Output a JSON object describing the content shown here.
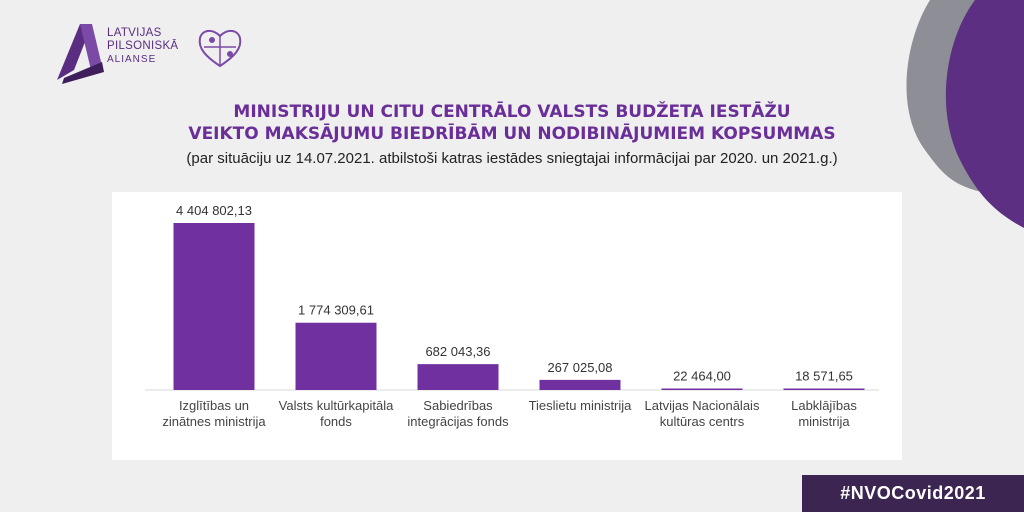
{
  "logo": {
    "lines": [
      "LATVIJAS",
      "PILSONISKĀ",
      "ALIANSE"
    ]
  },
  "title_lines": [
    "MINISTRIJU UN CITU CENTRĀLO VALSTS BUDŽETA IESTĀŽU",
    "VEIKTO MAKSĀJUMU BIEDRĪBĀM UN NODIBINĀJUMIEM KOPSUMMAS"
  ],
  "subtitle": "(par situāciju uz 14.07.2021. atbilstoši katras iestādes sniegtajai informācijai par 2020. un 2021.g.)",
  "hashtag": "#NVOCovid2021",
  "colors": {
    "bar": "#7030a0",
    "title": "#6a2e98",
    "hashtag_bg": "#3d2552",
    "deco_purple": "#5c2f83",
    "deco_gray": "#8e8e97"
  },
  "icons": [
    "alliance-a-logo-icon",
    "puzzle-heart-icon"
  ],
  "chart_data": {
    "type": "bar",
    "categories": [
      [
        "Izglītības un",
        "zinātnes ministrija"
      ],
      [
        "Valsts kultūrkapitāla",
        "fonds"
      ],
      [
        "Sabiedrības",
        "integrācijas fonds"
      ],
      [
        "Tieslietu ministrija"
      ],
      [
        "Latvijas Nacionālais",
        "kultūras centrs"
      ],
      [
        "Labklājības",
        "ministrija"
      ]
    ],
    "values": [
      4404802.13,
      1774309.61,
      682043.36,
      267025.08,
      22464.0,
      18571.65
    ],
    "data_labels": [
      "4 404 802,13",
      "1 774 309,61",
      "682 043,36",
      "267 025,08",
      "22 464,00",
      "18 571,65"
    ],
    "ylim": [
      0,
      4404802.13
    ],
    "grid": false,
    "legend": "none"
  }
}
